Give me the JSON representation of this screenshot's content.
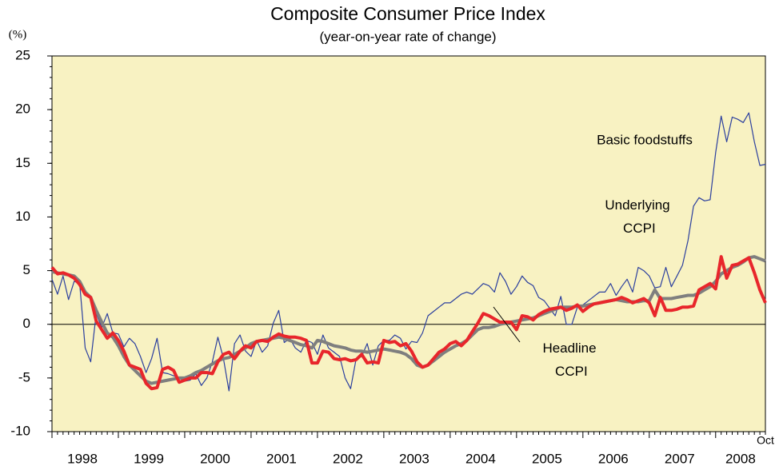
{
  "chart_data": {
    "type": "line",
    "title": "Composite Consumer Price Index",
    "subtitle": "(year-on-year rate of change)",
    "y_unit": "(%)",
    "xticks": [
      "1998",
      "1999",
      "2000",
      "2001",
      "2002",
      "2003",
      "2004",
      "2005",
      "2006",
      "2007",
      "2008"
    ],
    "x_end_label": "Oct",
    "ylim": [
      -10,
      25
    ],
    "yticks": [
      -10,
      -5,
      0,
      5,
      10,
      15,
      20,
      25
    ],
    "background": "#f8f2c2",
    "series": [
      {
        "name": "Basic foodstuffs",
        "color": "#2b3f9e",
        "width": 1.2,
        "values": [
          4.2,
          2.8,
          4.5,
          2.3,
          4.0,
          3.8,
          -2.2,
          -3.5,
          1.0,
          -0.3,
          1.0,
          -0.8,
          -0.9,
          -2.1,
          -1.3,
          -1.8,
          -3.0,
          -4.5,
          -3.2,
          -1.3,
          -4.5,
          -4.6,
          -4.8,
          -5.0,
          -5.3,
          -5.2,
          -4.6,
          -5.7,
          -5.0,
          -3.5,
          -1.2,
          -3.2,
          -6.2,
          -1.8,
          -1.0,
          -2.5,
          -3.0,
          -1.5,
          -2.6,
          -2.0,
          0.1,
          1.3,
          -1.7,
          -1.3,
          -2.2,
          -2.6,
          -1.5,
          -1.7,
          -2.8,
          -1.0,
          -2.2,
          -2.6,
          -3.0,
          -5.0,
          -6.0,
          -3.2,
          -3.0,
          -1.8,
          -3.8,
          -2.0,
          -1.5,
          -1.5,
          -1.0,
          -1.3,
          -2.3,
          -1.6,
          -1.7,
          -0.8,
          0.8,
          1.2,
          1.6,
          2.0,
          2.0,
          2.4,
          2.8,
          3.0,
          2.8,
          3.3,
          3.8,
          3.6,
          3.0,
          4.8,
          4.0,
          2.8,
          3.5,
          4.5,
          3.9,
          3.6,
          2.5,
          2.2,
          1.5,
          0.8,
          2.6,
          0.0,
          0.0,
          1.6,
          1.8,
          2.2,
          2.6,
          3.0,
          3.0,
          3.8,
          2.7,
          3.5,
          4.2,
          3.0,
          5.3,
          5.0,
          4.5,
          3.4,
          3.5,
          5.3,
          3.5,
          4.5,
          5.5,
          7.8,
          11.0,
          11.8,
          11.5,
          11.6,
          16.0,
          19.4,
          17.0,
          19.3,
          19.1,
          18.8,
          19.7,
          17.0,
          14.8,
          14.9
        ]
      },
      {
        "name": "Underlying CCPI",
        "color": "#7f7f7f",
        "width": 4,
        "values": [
          4.9,
          4.8,
          4.7,
          4.6,
          4.5,
          4.0,
          3.0,
          2.5,
          1.3,
          0.2,
          -0.8,
          -1.2,
          -2.0,
          -3.0,
          -3.8,
          -4.3,
          -4.8,
          -5.3,
          -5.5,
          -5.4,
          -5.3,
          -5.2,
          -5.1,
          -5.0,
          -5.0,
          -4.8,
          -4.5,
          -4.3,
          -4.0,
          -3.7,
          -3.4,
          -3.2,
          -3.1,
          -2.8,
          -2.5,
          -2.2,
          -1.8,
          -1.6,
          -1.5,
          -1.4,
          -1.3,
          -1.2,
          -1.3,
          -1.5,
          -1.7,
          -1.9,
          -2.0,
          -2.2,
          -1.5,
          -1.6,
          -1.8,
          -2.0,
          -2.1,
          -2.2,
          -2.4,
          -2.5,
          -2.5,
          -2.6,
          -2.5,
          -2.4,
          -2.3,
          -2.4,
          -2.5,
          -2.6,
          -2.8,
          -3.2,
          -3.8,
          -4.0,
          -3.8,
          -3.4,
          -3.0,
          -2.6,
          -2.3,
          -2.0,
          -1.8,
          -1.5,
          -1.0,
          -0.5,
          -0.3,
          -0.3,
          -0.2,
          0.0,
          0.1,
          0.2,
          0.3,
          0.4,
          0.5,
          0.6,
          0.8,
          1.0,
          1.2,
          1.4,
          1.6,
          1.6,
          1.6,
          1.7,
          1.7,
          1.8,
          1.9,
          2.0,
          2.1,
          2.2,
          2.3,
          2.2,
          2.1,
          2.1,
          2.1,
          2.2,
          2.2,
          3.2,
          2.4,
          2.4,
          2.4,
          2.5,
          2.6,
          2.7,
          2.7,
          2.9,
          3.2,
          3.5,
          4.0,
          4.7,
          5.0,
          5.3,
          5.5,
          5.8,
          6.2,
          6.3,
          6.1,
          5.9
        ]
      },
      {
        "name": "Headline CCPI",
        "color": "#e8262b",
        "width": 4,
        "values": [
          5.3,
          4.7,
          4.8,
          4.6,
          4.3,
          3.7,
          2.8,
          2.5,
          0.3,
          -0.5,
          -1.3,
          -0.8,
          -1.5,
          -2.5,
          -3.8,
          -4.0,
          -4.2,
          -5.5,
          -6.0,
          -5.9,
          -4.2,
          -4.0,
          -4.3,
          -5.4,
          -5.2,
          -5.0,
          -5.0,
          -4.5,
          -4.5,
          -4.6,
          -3.5,
          -2.8,
          -2.6,
          -3.2,
          -2.5,
          -2.0,
          -2.2,
          -1.6,
          -1.5,
          -1.6,
          -1.2,
          -0.9,
          -1.1,
          -1.2,
          -1.2,
          -1.3,
          -1.5,
          -3.6,
          -3.6,
          -2.5,
          -2.6,
          -3.2,
          -3.3,
          -3.2,
          -3.4,
          -3.3,
          -2.8,
          -3.6,
          -3.5,
          -3.6,
          -1.5,
          -1.7,
          -1.6,
          -2.0,
          -1.8,
          -2.5,
          -3.5,
          -4.0,
          -3.8,
          -3.2,
          -2.6,
          -2.3,
          -1.8,
          -1.6,
          -2.0,
          -1.5,
          -0.7,
          0.1,
          1.0,
          0.8,
          0.5,
          0.2,
          0.2,
          0.2,
          -0.5,
          0.8,
          0.7,
          0.4,
          0.9,
          1.2,
          1.4,
          1.5,
          1.6,
          1.3,
          1.5,
          1.8,
          1.2,
          1.6,
          1.9,
          2.0,
          2.1,
          2.2,
          2.3,
          2.5,
          2.3,
          2.0,
          2.2,
          2.4,
          2.0,
          0.8,
          2.5,
          1.3,
          1.3,
          1.4,
          1.6,
          1.6,
          1.7,
          3.2,
          3.5,
          3.8,
          3.3,
          6.3,
          4.3,
          5.5,
          5.6,
          5.9,
          6.2,
          4.8,
          3.2,
          2.0
        ]
      }
    ]
  }
}
